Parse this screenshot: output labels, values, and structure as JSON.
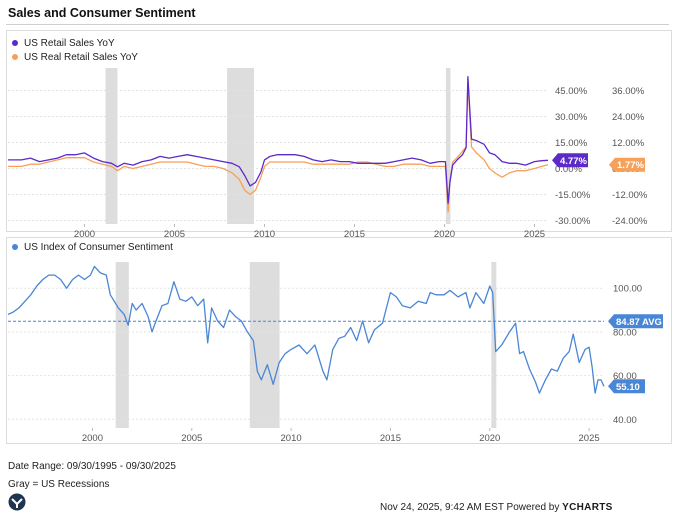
{
  "title": "Sales and Consumer Sentiment",
  "colors": {
    "retail": "#5b2ac9",
    "real": "#f7a05a",
    "sentiment": "#4a86d6",
    "recession": "#dddddd",
    "grid": "#e2e2e2",
    "axis_text": "#555555"
  },
  "chart_data": [
    {
      "type": "line",
      "title": "",
      "legend": [
        "US Retail Sales YoY",
        "US Real Retail Sales YoY"
      ],
      "x_ticks": [
        "2000",
        "2005",
        "2010",
        "2015",
        "2020",
        "2025"
      ],
      "x_tick_values": [
        2000,
        2005,
        2010,
        2015,
        2020,
        2025
      ],
      "xlim": [
        1995.75,
        2025.75
      ],
      "recessions": [
        [
          2001.17,
          2001.83
        ],
        [
          2007.92,
          2009.42
        ],
        [
          2020.08,
          2020.33
        ]
      ],
      "y_left": {
        "ticks": [
          "45.00%",
          "30.00%",
          "15.00%",
          "0.00%",
          "-15.00%",
          "-30.00%"
        ],
        "tick_values": [
          45,
          30,
          15,
          0,
          -15,
          -30
        ],
        "ylim": [
          -32,
          58
        ]
      },
      "y_right": {
        "ticks": [
          "36.00%",
          "24.00%",
          "12.00%",
          "0.00%",
          "-12.00%",
          "-24.00%"
        ],
        "tick_values": [
          36,
          24,
          12,
          0,
          -12,
          -24
        ],
        "ylim": [
          -25.6,
          46.4
        ]
      },
      "series": [
        {
          "name": "US Retail Sales YoY",
          "axis": "left",
          "last_label": "4.77%",
          "x": [
            1995.75,
            1996.5,
            1997.0,
            1997.5,
            1998.0,
            1998.5,
            1999.0,
            1999.5,
            2000.0,
            2000.5,
            2001.0,
            2001.5,
            2001.83,
            2002.2,
            2002.7,
            2003.2,
            2003.7,
            2004.2,
            2004.7,
            2005.2,
            2005.7,
            2006.2,
            2006.7,
            2007.2,
            2007.7,
            2008.2,
            2008.6,
            2008.9,
            2009.2,
            2009.5,
            2009.8,
            2010.0,
            2010.3,
            2010.7,
            2011.2,
            2011.7,
            2012.2,
            2012.7,
            2013.2,
            2013.7,
            2014.2,
            2014.7,
            2015.2,
            2015.7,
            2016.2,
            2016.7,
            2017.2,
            2017.7,
            2018.2,
            2018.7,
            2019.2,
            2019.7,
            2020.05,
            2020.2,
            2020.3,
            2020.45,
            2020.7,
            2021.0,
            2021.2,
            2021.3,
            2021.5,
            2021.8,
            2022.2,
            2022.5,
            2022.8,
            2023.2,
            2023.6,
            2024.0,
            2024.5,
            2025.0,
            2025.4,
            2025.75
          ],
          "values": [
            5,
            5,
            6,
            4,
            5,
            6,
            8,
            8,
            9,
            6,
            4,
            3,
            1,
            3,
            2,
            4,
            5,
            7,
            6,
            7,
            8,
            7,
            6,
            5,
            4,
            3,
            1,
            -4,
            -10,
            -8,
            -2,
            5,
            7,
            8,
            8,
            8,
            7,
            5,
            4,
            5,
            4,
            4,
            3,
            3,
            3,
            3,
            4,
            5,
            6,
            5,
            3,
            4,
            4,
            -20,
            -8,
            2,
            5,
            8,
            12,
            53,
            17,
            16,
            14,
            9,
            8,
            4,
            3,
            3,
            2,
            4,
            4.5,
            4.77
          ]
        },
        {
          "name": "US Real Retail Sales YoY",
          "axis": "right",
          "last_label": "1.77%",
          "x": [
            1995.75,
            1996.5,
            1997.0,
            1997.5,
            1998.0,
            1998.5,
            1999.0,
            1999.5,
            2000.0,
            2000.5,
            2001.0,
            2001.5,
            2001.83,
            2002.2,
            2002.7,
            2003.2,
            2003.7,
            2004.2,
            2004.7,
            2005.2,
            2005.7,
            2006.2,
            2006.7,
            2007.2,
            2007.7,
            2008.2,
            2008.6,
            2008.9,
            2009.2,
            2009.5,
            2009.8,
            2010.0,
            2010.3,
            2010.7,
            2011.2,
            2011.7,
            2012.2,
            2012.7,
            2013.2,
            2013.7,
            2014.2,
            2014.7,
            2015.2,
            2015.7,
            2016.2,
            2016.7,
            2017.2,
            2017.7,
            2018.2,
            2018.7,
            2019.2,
            2019.7,
            2020.05,
            2020.2,
            2020.3,
            2020.45,
            2020.7,
            2021.0,
            2021.2,
            2021.3,
            2021.5,
            2021.8,
            2022.2,
            2022.5,
            2022.8,
            2023.2,
            2023.6,
            2024.0,
            2024.5,
            2025.0,
            2025.4,
            2025.75
          ],
          "values": [
            1,
            1,
            2,
            2,
            3,
            4,
            5,
            5,
            5,
            3,
            2,
            1,
            -1,
            1,
            0,
            1,
            2,
            3,
            3,
            3,
            3,
            2,
            1,
            1,
            0,
            -2,
            -5,
            -10,
            -12,
            -10,
            -4,
            1,
            3,
            3,
            3,
            3,
            3,
            2,
            2,
            2,
            2,
            2,
            3,
            3,
            2,
            1,
            1,
            2,
            2,
            2,
            1,
            1,
            1,
            -20,
            -6,
            3,
            5,
            8,
            10,
            40,
            10,
            7,
            4,
            0,
            -2,
            -4,
            -2,
            -1,
            -1,
            0,
            1,
            1.77
          ]
        }
      ]
    },
    {
      "type": "line",
      "title": "",
      "legend": [
        "US Index of Consumer Sentiment"
      ],
      "x_ticks": [
        "2000",
        "2005",
        "2010",
        "2015",
        "2020",
        "2025"
      ],
      "x_tick_values": [
        2000,
        2005,
        2010,
        2015,
        2020,
        2025
      ],
      "xlim": [
        1995.75,
        2025.75
      ],
      "recessions": [
        [
          2001.17,
          2001.83
        ],
        [
          2007.92,
          2009.42
        ],
        [
          2020.08,
          2020.33
        ]
      ],
      "y_right": {
        "ticks": [
          "100.00",
          "80.00",
          "60.00",
          "40.00"
        ],
        "tick_values": [
          100,
          80,
          60,
          40
        ],
        "ylim": [
          36,
          112
        ]
      },
      "average": {
        "value": 84.87,
        "label": "84.87 AVG"
      },
      "series": [
        {
          "name": "US Index of Consumer Sentiment",
          "axis": "right",
          "last_label": "55.10",
          "x": [
            1995.75,
            1996.0,
            1996.3,
            1996.6,
            1996.9,
            1997.2,
            1997.5,
            1997.8,
            1998.1,
            1998.4,
            1998.7,
            1999.0,
            1999.3,
            1999.6,
            1999.9,
            2000.1,
            2000.4,
            2000.7,
            2000.9,
            2001.1,
            2001.3,
            2001.6,
            2001.8,
            2002.0,
            2002.2,
            2002.5,
            2002.8,
            2003.0,
            2003.2,
            2003.5,
            2003.8,
            2004.1,
            2004.4,
            2004.7,
            2005.0,
            2005.3,
            2005.6,
            2005.8,
            2006.0,
            2006.3,
            2006.6,
            2006.9,
            2007.2,
            2007.5,
            2007.8,
            2008.1,
            2008.3,
            2008.5,
            2008.8,
            2009.1,
            2009.4,
            2009.7,
            2010.0,
            2010.4,
            2010.8,
            2011.2,
            2011.6,
            2011.8,
            2012.1,
            2012.4,
            2012.7,
            2013.0,
            2013.3,
            2013.6,
            2013.9,
            2014.2,
            2014.6,
            2015.0,
            2015.3,
            2015.6,
            2016.0,
            2016.4,
            2016.8,
            2017.0,
            2017.3,
            2017.7,
            2018.0,
            2018.4,
            2018.8,
            2019.0,
            2019.3,
            2019.7,
            2020.0,
            2020.15,
            2020.3,
            2020.6,
            2021.0,
            2021.3,
            2021.5,
            2021.7,
            2022.0,
            2022.3,
            2022.5,
            2022.8,
            2023.1,
            2023.4,
            2023.7,
            2024.0,
            2024.2,
            2024.5,
            2024.8,
            2025.0,
            2025.15,
            2025.3,
            2025.45,
            2025.6,
            2025.75
          ],
          "values": [
            88,
            89,
            91,
            94,
            97,
            101,
            104,
            106,
            106,
            104,
            100,
            104,
            106,
            104,
            106,
            110,
            107,
            106,
            97,
            94,
            91,
            88,
            83,
            93,
            90,
            93,
            87,
            80,
            85,
            92,
            93,
            103,
            95,
            94,
            96,
            92,
            95,
            75,
            91,
            85,
            82,
            90,
            87,
            85,
            80,
            76,
            62,
            58,
            65,
            56,
            66,
            70,
            72,
            74,
            70,
            74,
            62,
            58,
            72,
            77,
            78,
            82,
            76,
            85,
            75,
            81,
            84,
            98,
            96,
            92,
            91,
            94,
            93,
            98,
            97,
            97,
            99,
            96,
            98,
            91,
            98,
            93,
            101,
            98,
            71,
            74,
            80,
            84,
            70,
            71,
            63,
            57,
            52,
            58,
            63,
            62,
            68,
            71,
            79,
            66,
            72,
            73,
            64,
            52,
            58,
            58,
            55.1
          ]
        }
      ]
    }
  ],
  "footer": {
    "date_range": "Date Range: 09/30/1995 - 09/30/2025",
    "recession_note": "Gray = US Recessions",
    "timestamp": "Nov 24, 2025, 9:42 AM EST Powered by",
    "brand": "YCHARTS"
  }
}
